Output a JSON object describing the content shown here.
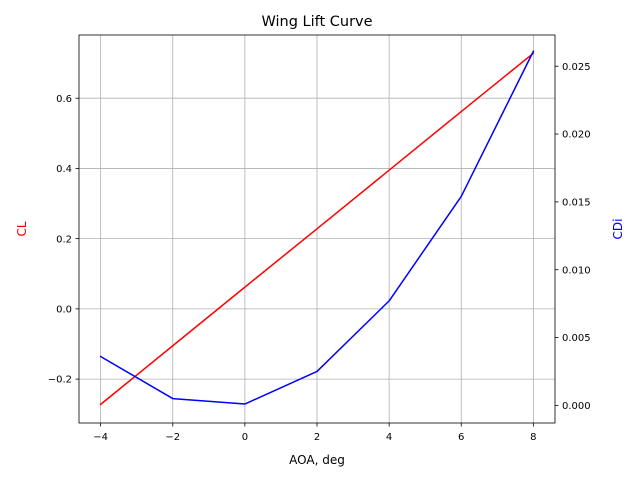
{
  "chart_data": {
    "type": "line",
    "title": "Wing Lift Curve",
    "xlabel": "AOA, deg",
    "ylabel_left": "CL",
    "ylabel_right": "CDi",
    "grid": true,
    "x": [
      -4,
      -2,
      0,
      2,
      4,
      6,
      8
    ],
    "xlim": [
      -4.6,
      8.6
    ],
    "xticks": [
      -4,
      -2,
      0,
      2,
      4,
      6,
      8
    ],
    "xtick_labels": [
      "−4",
      "−2",
      "0",
      "2",
      "4",
      "6",
      "8"
    ],
    "ylim_left": [
      -0.325,
      0.78
    ],
    "yticks_left": [
      -0.2,
      0.0,
      0.2,
      0.4,
      0.6
    ],
    "ytick_labels_left": [
      "−0.2",
      "0.0",
      "0.2",
      "0.4",
      "0.6"
    ],
    "ylim_right": [
      -0.0013,
      0.0273
    ],
    "yticks_right": [
      0.0,
      0.005,
      0.01,
      0.015,
      0.02,
      0.025
    ],
    "ytick_labels_right": [
      "0.000",
      "0.005",
      "0.010",
      "0.015",
      "0.020",
      "0.025"
    ],
    "series": [
      {
        "axis": "left",
        "color": "#ff0000",
        "values": [
          -0.272,
          -0.105,
          0.062,
          0.228,
          0.395,
          0.562,
          0.728
        ]
      },
      {
        "axis": "right",
        "color": "#0000ff",
        "values": [
          0.0036,
          0.0005,
          0.0001,
          0.0025,
          0.0077,
          0.0154,
          0.0261
        ]
      }
    ]
  }
}
